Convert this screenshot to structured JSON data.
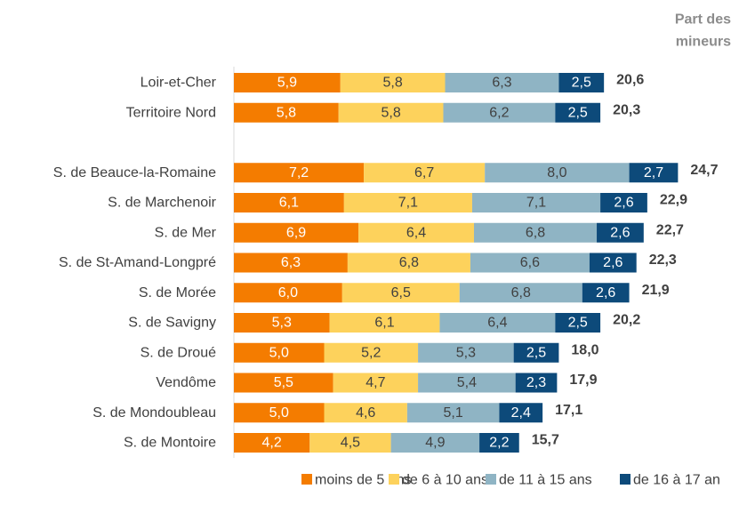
{
  "chart_data": {
    "type": "stacked-bar-horizontal",
    "annotation": [
      "Part des",
      "mineurs"
    ],
    "categories": [
      "Loir-et-Cher",
      "Territoire Nord",
      null,
      "S. de Beauce-la-Romaine",
      "S. de Marchenoir",
      "S. de Mer",
      "S. de St-Amand-Longpré",
      "S. de Morée",
      "S. de Savigny",
      "S. de Droué",
      "Vendôme",
      "S. de Mondoubleau",
      "S. de Montoire"
    ],
    "series": [
      {
        "name": "moins de 5 ans",
        "color": "#f47c00",
        "label_color": "#ffffff",
        "values": [
          5.9,
          5.8,
          null,
          7.2,
          6.1,
          6.9,
          6.3,
          6.0,
          5.3,
          5.0,
          5.5,
          5.0,
          4.2
        ],
        "value_labels": [
          "5,9",
          "5,8",
          null,
          "7,2",
          "6,1",
          "6,9",
          "6,3",
          "6,0",
          "5,3",
          "5,0",
          "5,5",
          "5,0",
          "4,2"
        ]
      },
      {
        "name": "de 6 à 10 ans",
        "color": "#fdd25c",
        "label_color": "#404040",
        "values": [
          5.8,
          5.8,
          null,
          6.7,
          7.1,
          6.4,
          6.8,
          6.5,
          6.1,
          5.2,
          4.7,
          4.6,
          4.5
        ],
        "value_labels": [
          "5,8",
          "5,8",
          null,
          "6,7",
          "7,1",
          "6,4",
          "6,8",
          "6,5",
          "6,1",
          "5,2",
          "4,7",
          "4,6",
          "4,5"
        ]
      },
      {
        "name": "de 11 à 15 ans",
        "color": "#8fb4c4",
        "label_color": "#404040",
        "values": [
          6.3,
          6.2,
          null,
          8.0,
          7.1,
          6.8,
          6.6,
          6.8,
          6.4,
          5.3,
          5.4,
          5.1,
          4.9
        ],
        "value_labels": [
          "6,3",
          "6,2",
          null,
          "8,0",
          "7,1",
          "6,8",
          "6,6",
          "6,8",
          "6,4",
          "5,3",
          "5,4",
          "5,1",
          "4,9"
        ]
      },
      {
        "name": "de 16 à 17 an",
        "color": "#0d4a7a",
        "label_color": "#ffffff",
        "values": [
          2.5,
          2.5,
          null,
          2.7,
          2.6,
          2.6,
          2.6,
          2.6,
          2.5,
          2.5,
          2.3,
          2.4,
          2.2
        ],
        "value_labels": [
          "2,5",
          "2,5",
          null,
          "2,7",
          "2,6",
          "2,6",
          "2,6",
          "2,6",
          "2,5",
          "2,5",
          "2,3",
          "2,4",
          "2,2"
        ]
      }
    ],
    "totals": [
      20.6,
      20.3,
      null,
      24.7,
      22.9,
      22.7,
      22.3,
      21.9,
      20.2,
      18.0,
      17.9,
      17.1,
      15.7
    ],
    "total_labels": [
      "20,6",
      "20,3",
      null,
      "24,7",
      "22,9",
      "22,7",
      "22,3",
      "21,9",
      "20,2",
      "18,0",
      "17,9",
      "17,1",
      "15,7"
    ],
    "legend": "bottom"
  }
}
